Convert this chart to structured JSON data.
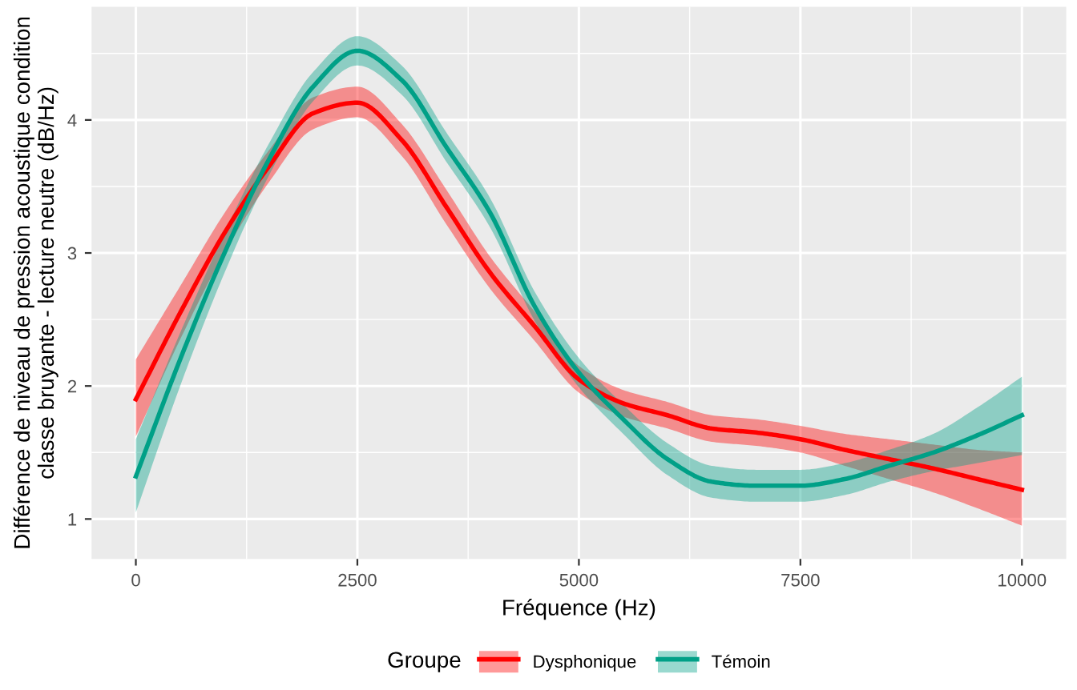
{
  "chart_data": {
    "type": "line",
    "xlabel": "Fréquence (Hz)",
    "ylabel": "Différence de niveau de pression acoustique condition\nclasse bruyante - lecture neutre (dB/Hz)",
    "legend_title": "Groupe",
    "legend": "bottom",
    "grid": true,
    "x": [
      0,
      500,
      1000,
      1500,
      2000,
      2500,
      3000,
      3500,
      4000,
      4500,
      5000,
      5500,
      6000,
      6500,
      7000,
      7500,
      8000,
      8500,
      9000,
      9500,
      10000
    ],
    "xlim": [
      -500,
      10500
    ],
    "xticks": [
      0,
      2500,
      5000,
      7500,
      10000
    ],
    "ylim": [
      0.7,
      4.85
    ],
    "yticks": [
      1,
      2,
      3,
      4
    ],
    "series": [
      {
        "name": "Dysphonique",
        "color": "#ff0000",
        "values": [
          1.9,
          2.55,
          3.15,
          3.65,
          4.05,
          4.13,
          3.85,
          3.35,
          2.85,
          2.45,
          2.05,
          1.87,
          1.78,
          1.68,
          1.65,
          1.6,
          1.52,
          1.45,
          1.38,
          1.3,
          1.22
        ],
        "lower": [
          1.62,
          2.35,
          3.0,
          3.53,
          3.93,
          4.02,
          3.73,
          3.22,
          2.73,
          2.34,
          1.95,
          1.77,
          1.68,
          1.58,
          1.55,
          1.5,
          1.4,
          1.3,
          1.2,
          1.08,
          0.95
        ],
        "upper": [
          2.2,
          2.75,
          3.3,
          3.77,
          4.17,
          4.25,
          3.97,
          3.48,
          2.97,
          2.56,
          2.15,
          1.97,
          1.88,
          1.78,
          1.75,
          1.7,
          1.64,
          1.6,
          1.56,
          1.52,
          1.5
        ]
      },
      {
        "name": "Témoin",
        "color": "#00a087",
        "values": [
          1.32,
          2.2,
          3.0,
          3.7,
          4.25,
          4.52,
          4.3,
          3.8,
          3.3,
          2.6,
          2.1,
          1.75,
          1.45,
          1.28,
          1.25,
          1.25,
          1.3,
          1.4,
          1.5,
          1.63,
          1.78
        ],
        "lower": [
          1.05,
          2.0,
          2.85,
          3.58,
          4.14,
          4.41,
          4.19,
          3.69,
          3.19,
          2.49,
          1.99,
          1.64,
          1.33,
          1.16,
          1.13,
          1.13,
          1.18,
          1.28,
          1.36,
          1.42,
          1.48
        ],
        "upper": [
          1.6,
          2.4,
          3.15,
          3.82,
          4.36,
          4.63,
          4.41,
          3.91,
          3.41,
          2.71,
          2.21,
          1.86,
          1.57,
          1.4,
          1.37,
          1.37,
          1.42,
          1.52,
          1.64,
          1.84,
          2.07
        ]
      }
    ]
  }
}
